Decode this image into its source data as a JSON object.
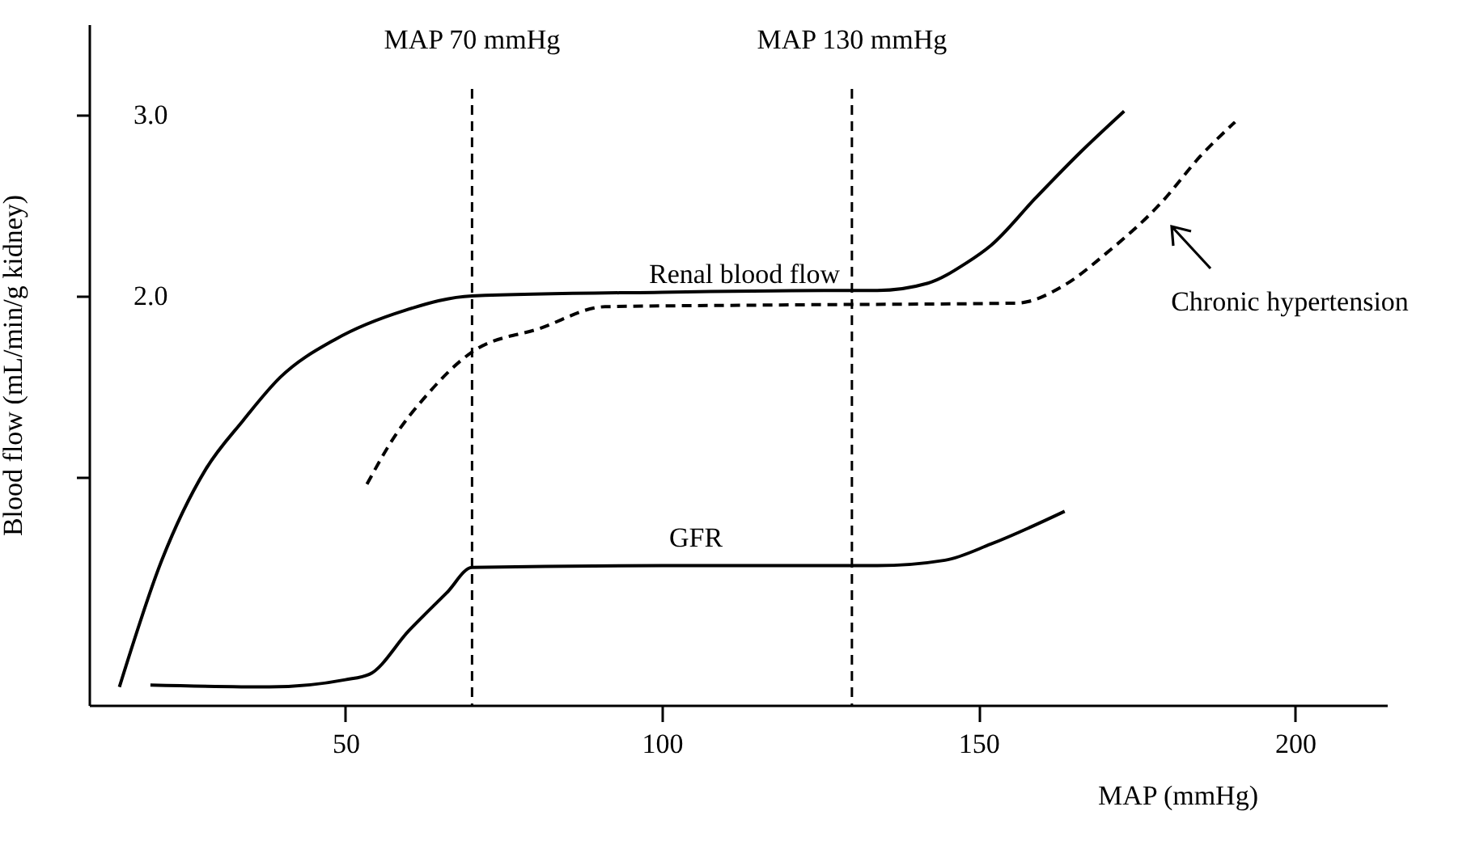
{
  "chart_data": {
    "type": "line",
    "xlabel": "MAP (mmHg)",
    "ylabel": "Blood flow (mL/min/g kidney)",
    "xlim": [
      9.5,
      214.5
    ],
    "xticks": [
      50,
      100,
      150,
      200
    ],
    "ylim": [
      -0.26,
      3.5
    ],
    "yticks": [
      {
        "value": 1,
        "label": null
      },
      {
        "value": 2,
        "label": "2.0"
      },
      {
        "value": 3,
        "label": "3.0"
      }
    ],
    "grid": false,
    "series": [
      {
        "color": "#000000",
        "line_style": "solid",
        "x": [
          14.3,
          21,
          27.9,
          33.8,
          39.7,
          48.4,
          59.4,
          70,
          100,
          130,
          134,
          142,
          148,
          152,
          159,
          166,
          173
        ],
        "values": [
          -0.16,
          0.54,
          1.04,
          1.31,
          1.55,
          1.76,
          1.92,
          2.0,
          2.02,
          2.03,
          2.03,
          2.07,
          2.18,
          2.28,
          2.54,
          2.79,
          3.02
        ]
      },
      {
        "color": "#000000",
        "line_style": "dashed",
        "x": [
          53.4,
          57.7,
          62.8,
          70,
          80.7,
          91,
          120,
          156,
          163.6,
          170,
          179,
          185,
          190.5
        ],
        "values": [
          0.96,
          1.22,
          1.45,
          1.69,
          1.82,
          1.94,
          1.95,
          1.96,
          2.06,
          2.23,
          2.52,
          2.77,
          2.96
        ]
      },
      {
        "color": "#000000",
        "line_style": "solid",
        "x": [
          19.2,
          38,
          50,
          53.8,
          60,
          66,
          70,
          100,
          130,
          134,
          144.7,
          152,
          163.6
        ],
        "values": [
          -0.15,
          -0.16,
          -0.12,
          -0.09,
          0.15,
          0.36,
          0.5,
          0.51,
          0.51,
          0.51,
          0.54,
          0.63,
          0.81
        ]
      }
    ],
    "ref_lines": [
      {
        "axis": "x",
        "value": 70,
        "label": "MAP 70 mmHg",
        "line_style": "dashed"
      },
      {
        "axis": "x",
        "value": 130,
        "label": "MAP 130 mmHg",
        "line_style": "dashed"
      }
    ],
    "annotations": [
      "Renal blood flow",
      "GFR",
      "Chronic hypertension"
    ]
  }
}
